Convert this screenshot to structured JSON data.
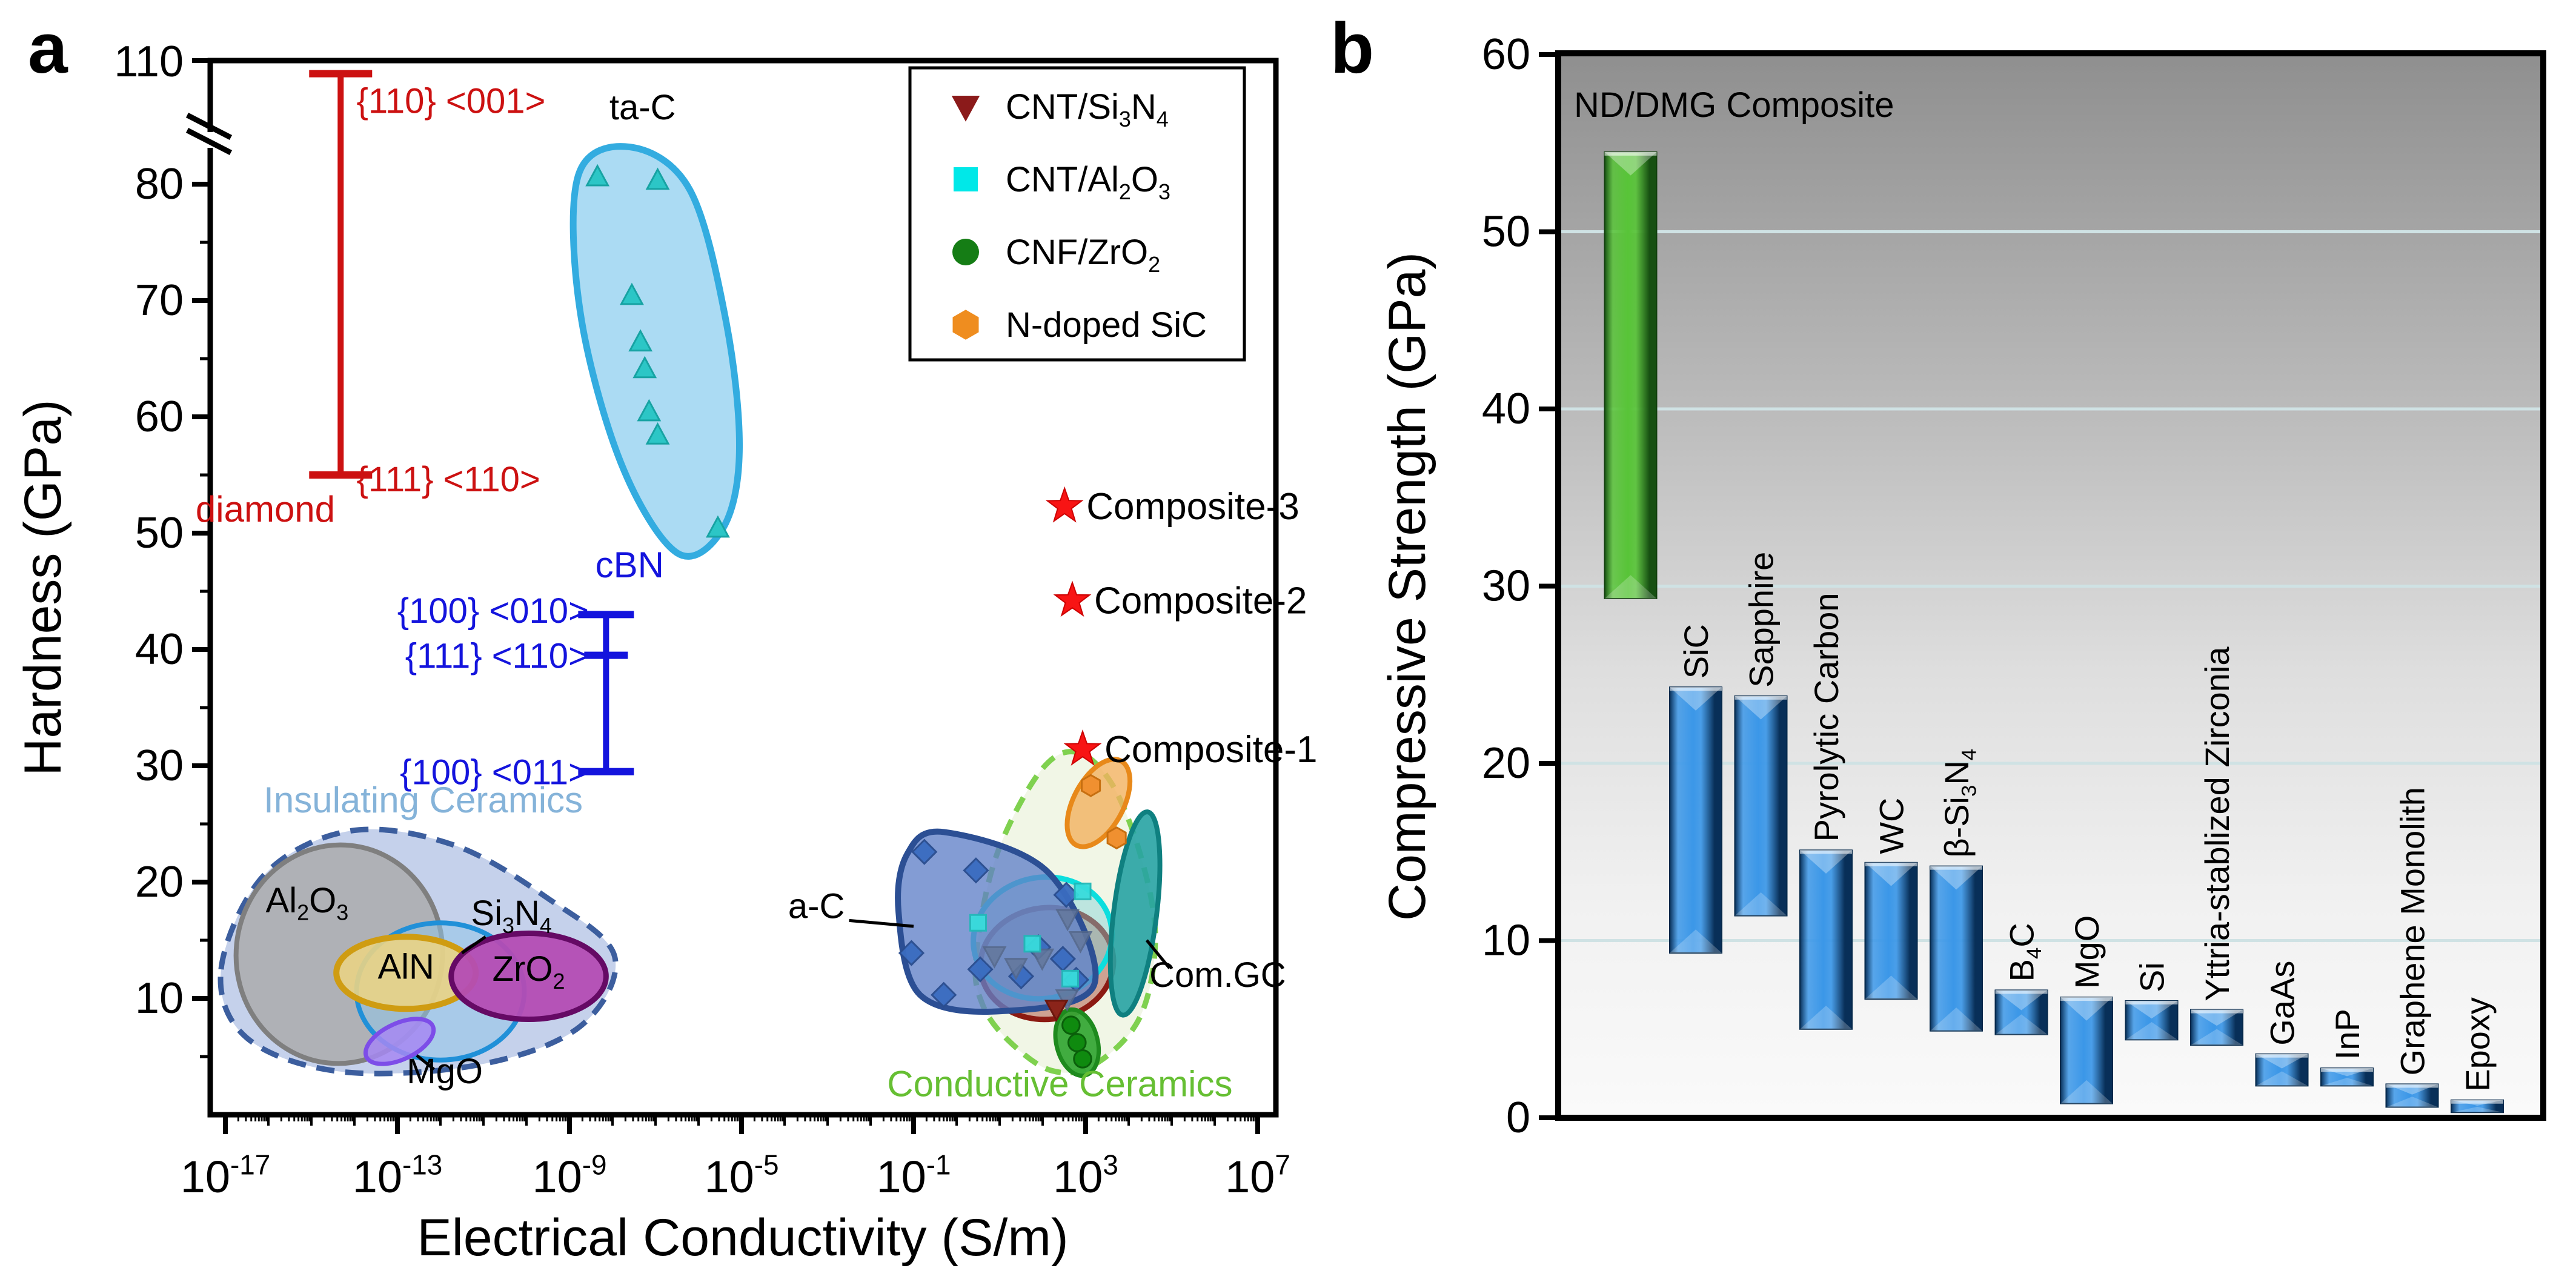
{
  "figure": {
    "panel_a_letter": "a",
    "panel_b_letter": "b",
    "background": "#ffffff"
  },
  "chart_data": [
    {
      "id": "a",
      "type": "scatter",
      "xlabel": "Electrical Conductivity (S/m)",
      "ylabel": "Hardness (GPa)",
      "x_scale": "log10",
      "x_tick_exponents": [
        -17,
        -13,
        -9,
        -5,
        -1,
        3,
        7
      ],
      "x_range_exponents": [
        -17.35,
        7.42
      ],
      "y_ticks": [
        10,
        20,
        30,
        40,
        50,
        60,
        70,
        80
      ],
      "y_top_tick": 110,
      "y_minor_step": 5,
      "y_axis_break_between": [
        85,
        110
      ],
      "error_bars": [
        {
          "name": "diamond",
          "color": "#cc1111",
          "x_exp": -14.32,
          "top": 105,
          "bottom": 55,
          "top_label": "{110} <001>",
          "bottom_label": "{111} <110>",
          "name_label": "diamond",
          "top_label_pos": [
            -13.95,
            90
          ],
          "bottom_label_pos": [
            -13.95,
            53.6
          ],
          "name_label_pos": [
            -14.45,
            51.0
          ]
        },
        {
          "name": "cBN",
          "color": "#1414dd",
          "x_exp": -8.15,
          "top": 43,
          "mid": 39.5,
          "bottom": 29.5,
          "top_label": "{100} <010>",
          "mid_label": "{111} <110>",
          "bottom_label": "{100} <011>",
          "name_label": "cBN",
          "top_label_pos": [
            -8.55,
            42.3
          ],
          "mid_label_pos": [
            -8.55,
            38.4
          ],
          "bottom_label_pos": [
            -8.55,
            28.4
          ],
          "name_label_pos": [
            -8.4,
            46.2
          ]
        }
      ],
      "regions": [
        {
          "name": "insulating-outline",
          "kind": "blob",
          "dash": "30 18",
          "stroke": "#3c5e9e",
          "stroke_w": 9,
          "fill": "#b7c6e6",
          "opacity": 0.8,
          "points": [
            [
              -17.1,
              12.5
            ],
            [
              -16.1,
              20.6
            ],
            [
              -14.1,
              24.4
            ],
            [
              -11.7,
              23.2
            ],
            [
              -9.5,
              18.6
            ],
            [
              -7.95,
              13.6
            ],
            [
              -8.75,
              7.6
            ],
            [
              -11.1,
              4.3
            ],
            [
              -14.3,
              3.7
            ],
            [
              -16.5,
              6.6
            ]
          ]
        },
        {
          "name": "Al2O3",
          "kind": "ellipse",
          "cx": -14.35,
          "cy": 13.8,
          "rx": 2.4,
          "ry": 9.4,
          "rot": 6,
          "stroke": "#7f7f7f",
          "stroke_w": 8,
          "fill": "#aaaaaa",
          "opacity": 0.82
        },
        {
          "name": "Si3N4",
          "kind": "ellipse",
          "cx": -12.0,
          "cy": 10.6,
          "rx": 1.95,
          "ry": 5.9,
          "rot": 0,
          "stroke": "#2090d8",
          "stroke_w": 8,
          "fill": "#8fc4e8",
          "opacity": 0.55
        },
        {
          "name": "AlN",
          "kind": "ellipse",
          "cx": -12.8,
          "cy": 12.2,
          "rx": 1.62,
          "ry": 3.1,
          "rot": 0,
          "stroke": "#cf9c12",
          "stroke_w": 10,
          "fill": "#e9d385",
          "opacity": 0.9
        },
        {
          "name": "MgO",
          "kind": "ellipse",
          "cx": -12.95,
          "cy": 6.3,
          "rx": 0.85,
          "ry": 1.55,
          "rot": -25,
          "stroke": "#7d4de8",
          "stroke_w": 7,
          "fill": "#a688f2",
          "opacity": 0.85
        },
        {
          "name": "ZrO2",
          "kind": "ellipse",
          "cx": -9.95,
          "cy": 11.9,
          "rx": 1.8,
          "ry": 3.7,
          "rot": 0,
          "stroke": "#650a65",
          "stroke_w": 9,
          "fill": "#b44cb4",
          "opacity": 0.95
        },
        {
          "name": "conductive-outline",
          "kind": "blob",
          "dash": "26 16",
          "stroke": "#7fd14f",
          "stroke_w": 9,
          "fill": "#eef5e2",
          "opacity": 0.85,
          "points": [
            [
              0.45,
              13.5
            ],
            [
              0.9,
              22
            ],
            [
              1.9,
              29.3
            ],
            [
              2.75,
              31.2
            ],
            [
              3.6,
              28.5
            ],
            [
              4.3,
              22
            ],
            [
              4.62,
              15
            ],
            [
              4.25,
              8.3
            ],
            [
              3.2,
              4.3
            ],
            [
              2.2,
              3.8
            ],
            [
              1.2,
              6.4
            ],
            [
              0.6,
              9.5
            ]
          ]
        },
        {
          "name": "CNT-Si3N4-region",
          "kind": "ellipse",
          "cx": 2.1,
          "cy": 13.0,
          "rx": 1.55,
          "ry": 4.8,
          "rot": -6,
          "stroke": "#8c1a12",
          "stroke_w": 9,
          "fill": "#b86a5a",
          "opacity": 0.6
        },
        {
          "name": "CNT-Al2O3-region",
          "kind": "ellipse",
          "cx": 2.0,
          "cy": 15.2,
          "rx": 1.62,
          "ry": 5.2,
          "rot": -12,
          "stroke": "#0cdede",
          "stroke_w": 9,
          "fill": "#7fd0d8",
          "opacity": 0.45
        },
        {
          "name": "a-C-region",
          "kind": "blob",
          "stroke": "#2c4f94",
          "stroke_w": 10,
          "fill": "#6080c8",
          "opacity": 0.78,
          "points": [
            [
              -1.15,
              22.4
            ],
            [
              -0.29,
              24.3
            ],
            [
              2.14,
              20.8
            ],
            [
              3.2,
              11.2
            ],
            [
              1.03,
              8.9
            ],
            [
              -0.85,
              10.3
            ],
            [
              -1.35,
              17.4
            ]
          ]
        },
        {
          "name": "ta-C-region",
          "kind": "blob",
          "stroke": "#33ace0",
          "stroke_w": 11,
          "fill": "#a6d9f2",
          "opacity": 0.95,
          "points": [
            [
              -8.8,
              80.7
            ],
            [
              -7.6,
              83.2
            ],
            [
              -6.2,
              79.5
            ],
            [
              -5.35,
              68
            ],
            [
              -5.05,
              57
            ],
            [
              -5.45,
              50.3
            ],
            [
              -6.5,
              48.3
            ],
            [
              -7.8,
              56
            ],
            [
              -8.75,
              69
            ]
          ]
        },
        {
          "name": "N-doped-SiC-region",
          "kind": "ellipse",
          "cx": 3.3,
          "cy": 26.8,
          "rx": 0.58,
          "ry": 4.1,
          "rot": 28,
          "stroke": "#e8891a",
          "stroke_w": 8,
          "fill": "#f2b25f",
          "opacity": 0.8
        },
        {
          "name": "Com-GC-region",
          "kind": "ellipse",
          "cx": 4.15,
          "cy": 17.3,
          "rx": 0.5,
          "ry": 8.8,
          "rot": 7,
          "stroke": "#0f8080",
          "stroke_w": 8,
          "fill": "#27a3a3",
          "opacity": 0.9
        },
        {
          "name": "CNF-ZrO2-region",
          "kind": "ellipse",
          "cx": 2.8,
          "cy": 6.2,
          "rx": 0.48,
          "ry": 2.9,
          "rot": -14,
          "stroke": "#1e8a1e",
          "stroke_w": 7,
          "fill": "#37a837",
          "opacity": 0.95
        }
      ],
      "region_labels": [
        {
          "text": "Insulating Ceramics",
          "pos": [
            -12.4,
            26.0
          ],
          "color": "#85b3d9",
          "size": 60,
          "anchor": "middle"
        },
        {
          "text": "Al_{2}O_{3}",
          "pos": [
            -15.1,
            17.4
          ],
          "color": "#000000",
          "size": 58,
          "anchor": "middle"
        },
        {
          "text": "Si_{3}N_{4}",
          "pos": [
            -10.35,
            16.3
          ],
          "color": "#000000",
          "size": 58,
          "anchor": "middle",
          "pointer": [
            [
              -10.95,
              15.3
            ],
            [
              -11.5,
              13.9
            ]
          ]
        },
        {
          "text": "AlN",
          "pos": [
            -12.8,
            11.7
          ],
          "color": "#000000",
          "size": 58,
          "anchor": "middle"
        },
        {
          "text": "ZrO_{2}",
          "pos": [
            -9.95,
            11.5
          ],
          "color": "#000000",
          "size": 58,
          "anchor": "middle"
        },
        {
          "text": "MgO",
          "pos": [
            -11.9,
            2.7
          ],
          "color": "#000000",
          "size": 58,
          "anchor": "middle",
          "pointer": [
            [
              -12.55,
              5.1
            ],
            [
              -12.15,
              3.9
            ]
          ]
        },
        {
          "text": "Conductive Ceramics",
          "pos": [
            2.4,
            1.6
          ],
          "color": "#66bf33",
          "size": 60,
          "anchor": "middle"
        },
        {
          "text": "a-C",
          "pos": [
            -2.6,
            16.9
          ],
          "color": "#000000",
          "size": 58,
          "anchor": "end",
          "pointer": [
            [
              -2.5,
              16.7
            ],
            [
              -1.0,
              16.2
            ]
          ]
        },
        {
          "text": "ta-C",
          "pos": [
            -7.3,
            87.5
          ],
          "color": "#000000",
          "size": 58,
          "anchor": "middle"
        },
        {
          "text": "Com.GC",
          "pos": [
            4.48,
            11.0
          ],
          "color": "#000000",
          "size": 58,
          "anchor": "start",
          "pointer": [
            [
              4.42,
              15.0
            ],
            [
              4.95,
              12.6
            ]
          ]
        }
      ],
      "series_markers": [
        {
          "name": "ta-C points",
          "shape": "triangle-up",
          "fill": "#2cc6c6",
          "stroke": "#17a3a3",
          "size": 30,
          "points": [
            [
              -8.35,
              80.6
            ],
            [
              -6.95,
              80.3
            ],
            [
              -7.55,
              70.4
            ],
            [
              -7.35,
              66.4
            ],
            [
              -7.25,
              64.1
            ],
            [
              -7.15,
              60.4
            ],
            [
              -6.95,
              58.4
            ],
            [
              -5.55,
              50.4
            ]
          ]
        },
        {
          "name": "a-C points",
          "shape": "diamond",
          "fill": "#3a6cc0",
          "stroke": "#2a4d8f",
          "size": 30,
          "opacity": 0.95,
          "points": [
            [
              -0.75,
              22.6
            ],
            [
              0.45,
              21.0
            ],
            [
              -1.05,
              13.9
            ],
            [
              -0.3,
              10.3
            ],
            [
              1.9,
              14.4
            ],
            [
              2.47,
              13.4
            ],
            [
              2.78,
              11.6
            ],
            [
              1.5,
              11.9
            ],
            [
              0.55,
              12.5
            ],
            [
              2.55,
              18.9
            ]
          ]
        },
        {
          "name": "CNT/Si3N4 points",
          "shape": "triangle-down",
          "fill": "#64789c",
          "stroke": "#55688a",
          "size": 30,
          "opacity": 0.85,
          "points": [
            [
              2.58,
              16.9
            ],
            [
              2.88,
              15.0
            ],
            [
              0.88,
              13.7
            ],
            [
              1.38,
              12.7
            ],
            [
              1.99,
              13.5
            ],
            [
              2.57,
              10.0
            ]
          ]
        },
        {
          "name": "CNT/Si3N4 dark point",
          "shape": "triangle-down",
          "fill": "#8b241a",
          "stroke": "#6b160e",
          "size": 30,
          "points": [
            [
              2.32,
              9.1
            ]
          ]
        },
        {
          "name": "CNT/Al2O3 points",
          "shape": "square",
          "fill": "#38dcdc",
          "stroke": "#22b8b8",
          "size": 26,
          "opacity": 0.95,
          "points": [
            [
              2.93,
              19.2
            ],
            [
              0.5,
              16.5
            ],
            [
              1.76,
              14.7
            ],
            [
              2.64,
              11.7
            ]
          ]
        },
        {
          "name": "CNF/ZrO2 points",
          "shape": "circle",
          "fill": "#0f8a0f",
          "stroke": "#0a5f0a",
          "size": 26,
          "points": [
            [
              2.66,
              7.7
            ],
            [
              2.8,
              6.2
            ],
            [
              2.93,
              4.8
            ]
          ]
        },
        {
          "name": "N-doped SiC points",
          "shape": "hexagon",
          "fill": "#f09030",
          "stroke": "#c76f10",
          "size": 28,
          "points": [
            [
              3.12,
              28.3
            ],
            [
              3.72,
              23.8
            ]
          ]
        }
      ],
      "stars": [
        {
          "label": "Composite-3",
          "x_exp": 2.51,
          "y": 52.3
        },
        {
          "label": "Composite-2",
          "x_exp": 2.69,
          "y": 44.2
        },
        {
          "label": "Composite-1",
          "x_exp": 2.93,
          "y": 31.4
        }
      ],
      "star_color": "#f81414",
      "legend": {
        "items": [
          {
            "marker": "triangle-down",
            "color": "#8b1a1a",
            "label": "CNT/Si_{3}N_{4}"
          },
          {
            "marker": "square",
            "color": "#00e8e8",
            "label": "CNT/Al_{2}O_{3}"
          },
          {
            "marker": "circle",
            "color": "#157d15",
            "label": "CNF/ZrO_{2}"
          },
          {
            "marker": "hexagon",
            "color": "#ef8d1f",
            "label": "N-doped SiC"
          }
        ]
      }
    },
    {
      "id": "b",
      "type": "bar",
      "subtype": "floating-range",
      "ylabel": "Compressive Strength (GPa)",
      "ylim": [
        0,
        60
      ],
      "yticks": [
        0,
        10,
        20,
        30,
        40,
        50,
        60
      ],
      "gridlines": [
        10,
        20,
        30,
        40,
        50
      ],
      "gridline_color": "#cfe2e4",
      "background_gradient": [
        "#8f8f8f",
        "#b9b9b9",
        "#dedede",
        "#f1f1f1",
        "#fafafa"
      ],
      "bar_colors": {
        "blue": {
          "edge": "#082f58",
          "mid": "#3b97e8",
          "stroke": "#05284a"
        },
        "green": {
          "edge": "#175012",
          "mid": "#58c438",
          "stroke": "#123f0e"
        }
      },
      "bars": [
        {
          "label": "ND/DMG Composite",
          "min": 29.3,
          "max": 54.5,
          "color": "green",
          "rotated": false
        },
        {
          "label": "SiC",
          "min": 9.3,
          "max": 24.3,
          "color": "blue",
          "rotated": true
        },
        {
          "label": "Sapphire",
          "min": 11.4,
          "max": 23.8,
          "color": "blue",
          "rotated": true
        },
        {
          "label": "Pyrolytic Carbon",
          "min": 5.0,
          "max": 15.1,
          "color": "blue",
          "rotated": true
        },
        {
          "label": "WC",
          "min": 6.7,
          "max": 14.4,
          "color": "blue",
          "rotated": true
        },
        {
          "label": "β-Si_{3}N_{4}",
          "min": 4.9,
          "max": 14.2,
          "color": "blue",
          "rotated": true
        },
        {
          "label": "B_{4}C",
          "min": 4.7,
          "max": 7.2,
          "color": "blue",
          "rotated": true
        },
        {
          "label": "MgO",
          "min": 0.8,
          "max": 6.8,
          "color": "blue",
          "rotated": true
        },
        {
          "label": "Si",
          "min": 4.4,
          "max": 6.6,
          "color": "blue",
          "rotated": true
        },
        {
          "label": "Yttria-stablized Zirconia",
          "min": 4.1,
          "max": 6.1,
          "color": "blue",
          "rotated": true
        },
        {
          "label": "GaAs",
          "min": 1.8,
          "max": 3.6,
          "color": "blue",
          "rotated": true
        },
        {
          "label": "InP",
          "min": 1.8,
          "max": 2.8,
          "color": "blue",
          "rotated": true
        },
        {
          "label": "Graphene Monolith",
          "min": 0.6,
          "max": 1.9,
          "color": "blue",
          "rotated": true
        },
        {
          "label": "Epoxy",
          "min": 0.3,
          "max": 1.0,
          "color": "blue",
          "rotated": true
        }
      ]
    }
  ]
}
